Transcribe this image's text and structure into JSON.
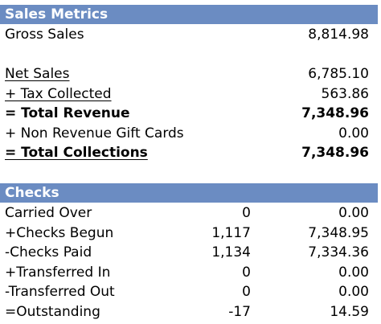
{
  "colors": {
    "header_bg": "#6b8cc2",
    "header_text": "#ffffff"
  },
  "sales_metrics": {
    "title": "Sales Metrics",
    "gross_sales": {
      "label": "Gross Sales",
      "value": "8,814.98"
    },
    "net_sales": {
      "label": "Net Sales",
      "value": "6,785.10"
    },
    "tax_collected": {
      "label": "+ Tax Collected",
      "value": "563.86"
    },
    "total_revenue": {
      "label": "= Total Revenue",
      "value": "7,348.96"
    },
    "non_revenue_gift_cards": {
      "label": "+ Non Revenue Gift Cards",
      "value": "0.00"
    },
    "total_collections": {
      "label": "= Total Collections",
      "value": "7,348.96"
    }
  },
  "checks": {
    "title": "Checks",
    "rows": [
      {
        "label": "Carried Over",
        "count": "0",
        "amount": "0.00"
      },
      {
        "label": "+Checks Begun",
        "count": "1,117",
        "amount": "7,348.95"
      },
      {
        "label": "-Checks Paid",
        "count": "1,134",
        "amount": "7,334.36"
      },
      {
        "label": "+Transferred In",
        "count": "0",
        "amount": "0.00"
      },
      {
        "label": "-Transferred Out",
        "count": "0",
        "amount": "0.00"
      },
      {
        "label": "=Outstanding",
        "count": "-17",
        "amount": "14.59"
      }
    ]
  }
}
